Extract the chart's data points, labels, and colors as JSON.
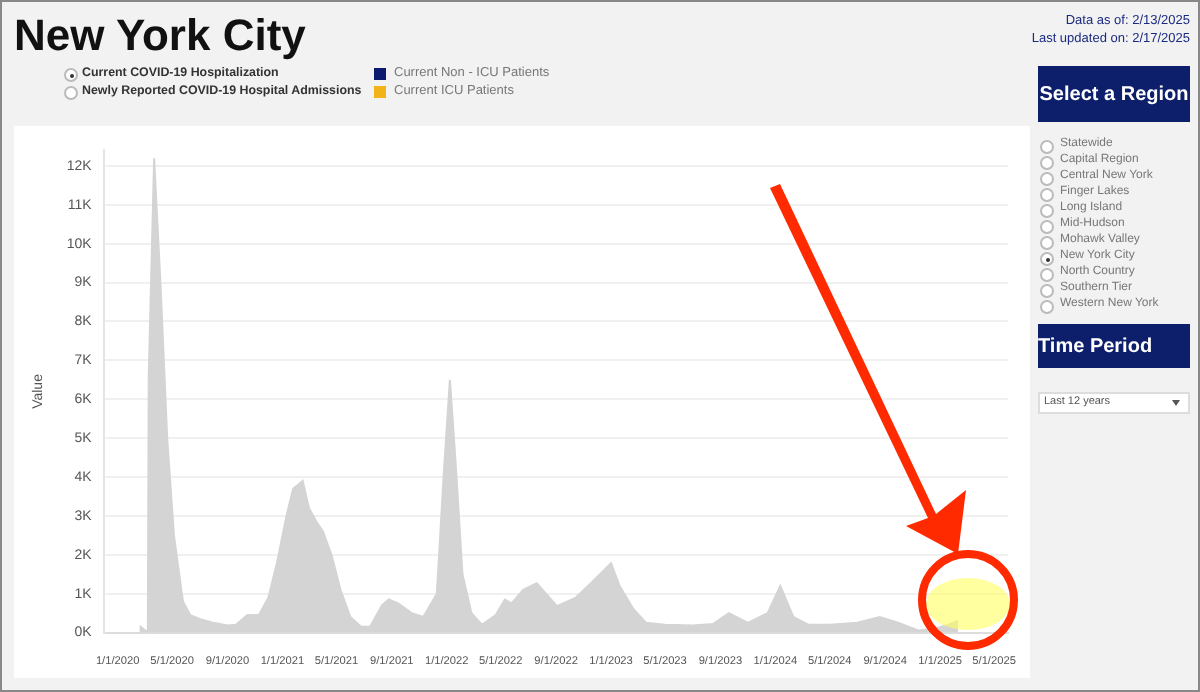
{
  "chart_data": {
    "type": "area",
    "title": "New York City",
    "ylabel": "Value",
    "color": "#d4d4d4",
    "grid": "y",
    "x": [
      "2020-02-20",
      "2020-02-21",
      "2020-03-08",
      "2020-03-10",
      "2020-03-22",
      "2020-04-05",
      "2020-04-20",
      "2020-05-05",
      "2020-05-25",
      "2020-06-10",
      "2020-07-01",
      "2020-08-01",
      "2020-09-01",
      "2020-09-20",
      "2020-10-15",
      "2020-11-10",
      "2020-12-01",
      "2020-12-20",
      "2021-01-10",
      "2021-01-25",
      "2021-02-05",
      "2021-02-15",
      "2021-03-01",
      "2021-03-20",
      "2021-04-01",
      "2021-04-20",
      "2021-05-10",
      "2021-06-01",
      "2021-06-25",
      "2021-07-15",
      "2021-08-10",
      "2021-08-25",
      "2021-09-15",
      "2021-10-15",
      "2021-11-10",
      "2021-12-10",
      "2021-12-25",
      "2022-01-08",
      "2022-01-20",
      "2022-02-05",
      "2022-02-25",
      "2022-03-20",
      "2022-04-20",
      "2022-05-10",
      "2022-05-25",
      "2022-06-20",
      "2022-07-20",
      "2022-09-03",
      "2022-10-15",
      "2022-11-20",
      "2023-01-01",
      "2023-01-20",
      "2023-02-20",
      "2023-03-20",
      "2023-05-01",
      "2023-07-01",
      "2023-08-15",
      "2023-09-20",
      "2023-11-01",
      "2023-12-15",
      "2024-01-12",
      "2024-02-10",
      "2024-03-15",
      "2024-05-01",
      "2024-07-01",
      "2024-08-20",
      "2024-10-01",
      "2024-11-15",
      "2024-12-20",
      "2025-01-20",
      "2025-02-10"
    ],
    "values": [
      0,
      150,
      0,
      6600,
      12200,
      9000,
      5000,
      2500,
      800,
      450,
      350,
      250,
      180,
      200,
      450,
      450,
      900,
      1800,
      3000,
      3700,
      3800,
      3900,
      3200,
      2800,
      2600,
      2000,
      1100,
      400,
      150,
      150,
      700,
      850,
      750,
      500,
      400,
      1000,
      4000,
      6500,
      4500,
      1500,
      500,
      200,
      450,
      850,
      750,
      1100,
      1270,
      680,
      900,
      1300,
      1780,
      1200,
      600,
      250,
      200,
      180,
      220,
      500,
      250,
      500,
      1200,
      400,
      200,
      200,
      250,
      400,
      250,
      50,
      100,
      200,
      300
    ],
    "xlim": [
      "2019-12-01",
      "2025-06-01"
    ],
    "xticks": [
      {
        "value": "2020-01-01",
        "label": "1/1/2020"
      },
      {
        "value": "2020-05-01",
        "label": "5/1/2020"
      },
      {
        "value": "2020-09-01",
        "label": "9/1/2020"
      },
      {
        "value": "2021-01-01",
        "label": "1/1/2021"
      },
      {
        "value": "2021-05-01",
        "label": "5/1/2021"
      },
      {
        "value": "2021-09-01",
        "label": "9/1/2021"
      },
      {
        "value": "2022-01-01",
        "label": "1/1/2022"
      },
      {
        "value": "2022-05-01",
        "label": "5/1/2022"
      },
      {
        "value": "2022-09-01",
        "label": "9/1/2022"
      },
      {
        "value": "2023-01-01",
        "label": "1/1/2023"
      },
      {
        "value": "2023-05-01",
        "label": "5/1/2023"
      },
      {
        "value": "2023-09-01",
        "label": "9/1/2023"
      },
      {
        "value": "2024-01-01",
        "label": "1/1/2024"
      },
      {
        "value": "2024-05-01",
        "label": "5/1/2024"
      },
      {
        "value": "2024-09-01",
        "label": "9/1/2024"
      },
      {
        "value": "2025-01-01",
        "label": "1/1/2025"
      },
      {
        "value": "2025-05-01",
        "label": "5/1/2025"
      }
    ],
    "ylim": [
      0,
      12400
    ],
    "yticks": [
      {
        "value": 0,
        "label": "0K"
      },
      {
        "value": 1000,
        "label": "1K"
      },
      {
        "value": 2000,
        "label": "2K"
      },
      {
        "value": 3000,
        "label": "3K"
      },
      {
        "value": 4000,
        "label": "4K"
      },
      {
        "value": 5000,
        "label": "5K"
      },
      {
        "value": 6000,
        "label": "6K"
      },
      {
        "value": 7000,
        "label": "7K"
      },
      {
        "value": 8000,
        "label": "8K"
      },
      {
        "value": 9000,
        "label": "9K"
      },
      {
        "value": 10000,
        "label": "10K"
      },
      {
        "value": 11000,
        "label": "11K"
      },
      {
        "value": 12000,
        "label": "12K"
      }
    ],
    "annotations": [
      "Data as of: 2/13/2025",
      "Last updated on: 2/17/2025",
      "Current COVID-19 Hospitalization",
      "Newly Reported COVID-19 Hospital Admissions",
      "Current Non - ICU Patients",
      "Current ICU Patients",
      "Select a Region",
      "Statewide",
      "Capital Region",
      "Central New York",
      "Finger Lakes",
      "Long Island",
      "Mid-Hudson",
      "Mohawk Valley",
      "New York City",
      "North Country",
      "Southern Tier",
      "Western New York",
      "Time Period",
      "Last 12 years"
    ]
  }
}
